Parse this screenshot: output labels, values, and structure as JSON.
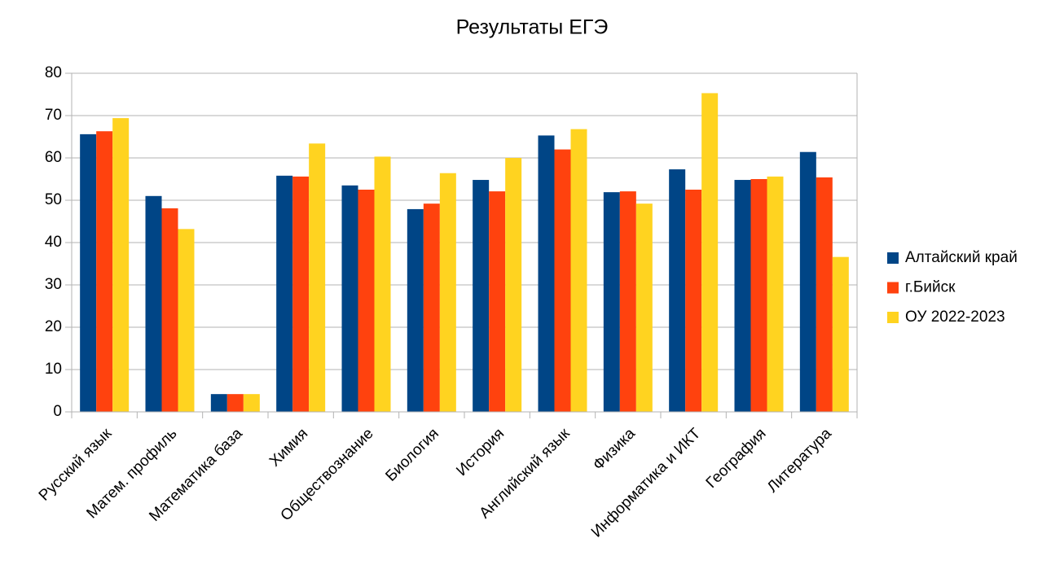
{
  "chart_data": {
    "type": "bar",
    "title": "Результаты ЕГЭ",
    "categories": [
      "Русский язык",
      "Матем. профиль",
      "Математика база",
      "Химия",
      "Обществознание",
      "Биология",
      "История",
      "Английский язык",
      "Физика",
      "Информатика и ИКТ",
      "География",
      "Литература"
    ],
    "series": [
      {
        "name": "Алтайский край",
        "color": "#004586",
        "values": [
          65.6,
          51,
          4.2,
          55.8,
          53.5,
          47.9,
          54.8,
          65.3,
          51.9,
          57.3,
          54.8,
          61.4
        ]
      },
      {
        "name": "г.Бийск",
        "color": "#ff420e",
        "values": [
          66.3,
          48.1,
          4.2,
          55.6,
          52.5,
          49.2,
          52.1,
          62,
          52.1,
          52.5,
          55,
          55.4
        ]
      },
      {
        "name": "ОУ 2022-2023",
        "color": "#ffd320",
        "values": [
          69.4,
          43.2,
          4.2,
          63.4,
          60.3,
          56.4,
          60,
          66.8,
          49.2,
          75.3,
          55.6,
          36.6
        ]
      }
    ],
    "ylim": [
      0,
      80
    ],
    "yticks": [
      0,
      10,
      20,
      30,
      40,
      50,
      60,
      70,
      80
    ],
    "grid": true,
    "legend": "right"
  }
}
